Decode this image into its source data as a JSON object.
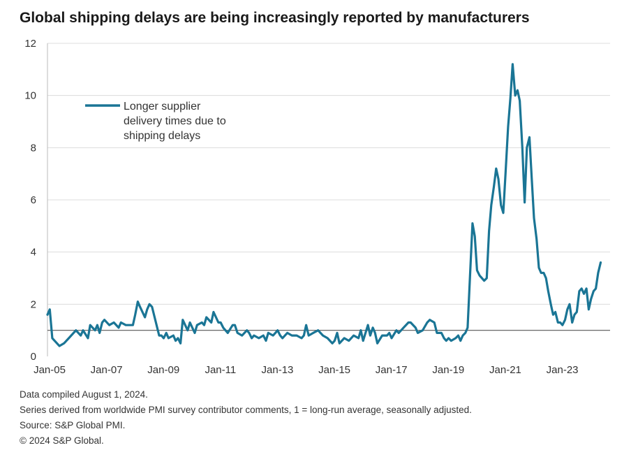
{
  "title": "Global shipping delays are being increasingly reported by manufacturers",
  "footnotes": {
    "compiled": "Data compiled August 1, 2024.",
    "series_note": "Series derived from worldwide PMI survey contributor comments, 1 = long-run average, seasonally adjusted.",
    "source": "Source: S&P Global PMI.",
    "copyright": "© 2024 S&P Global."
  },
  "colors": {
    "series": "#1a7595",
    "grid": "#dcdcdc",
    "reference": "#555555",
    "text": "#333333"
  },
  "chart_data": {
    "type": "line",
    "title": "Global shipping delays are being increasingly reported by manufacturers",
    "xlabel": "",
    "ylabel": "",
    "ylim": [
      0,
      12
    ],
    "yticks": [
      0,
      2,
      4,
      6,
      8,
      10,
      12
    ],
    "xlim": [
      2005.0,
      2024.75
    ],
    "xticks": [
      {
        "x": 2005.0,
        "label": "Jan-05"
      },
      {
        "x": 2007.0,
        "label": "Jan-07"
      },
      {
        "x": 2009.0,
        "label": "Jan-09"
      },
      {
        "x": 2011.0,
        "label": "Jan-11"
      },
      {
        "x": 2013.0,
        "label": "Jan-13"
      },
      {
        "x": 2015.0,
        "label": "Jan-15"
      },
      {
        "x": 2017.0,
        "label": "Jan-17"
      },
      {
        "x": 2019.0,
        "label": "Jan-19"
      },
      {
        "x": 2021.0,
        "label": "Jan-21"
      },
      {
        "x": 2023.0,
        "label": "Jan-23"
      }
    ],
    "reference_line": 1,
    "grid": true,
    "legend": "top-left",
    "series": [
      {
        "name": "Longer supplier delivery times due to shipping delays",
        "points": [
          [
            2005.0,
            1.6
          ],
          [
            2005.08,
            1.8
          ],
          [
            2005.17,
            0.7
          ],
          [
            2005.25,
            0.6
          ],
          [
            2005.42,
            0.4
          ],
          [
            2005.58,
            0.5
          ],
          [
            2005.75,
            0.7
          ],
          [
            2006.0,
            1.0
          ],
          [
            2006.17,
            0.8
          ],
          [
            2006.25,
            1.0
          ],
          [
            2006.42,
            0.7
          ],
          [
            2006.5,
            1.2
          ],
          [
            2006.67,
            1.0
          ],
          [
            2006.75,
            1.2
          ],
          [
            2006.83,
            0.9
          ],
          [
            2006.92,
            1.3
          ],
          [
            2007.0,
            1.4
          ],
          [
            2007.17,
            1.2
          ],
          [
            2007.33,
            1.3
          ],
          [
            2007.5,
            1.1
          ],
          [
            2007.58,
            1.3
          ],
          [
            2007.75,
            1.2
          ],
          [
            2008.0,
            1.2
          ],
          [
            2008.08,
            1.6
          ],
          [
            2008.17,
            2.1
          ],
          [
            2008.25,
            1.9
          ],
          [
            2008.42,
            1.5
          ],
          [
            2008.5,
            1.8
          ],
          [
            2008.58,
            2.0
          ],
          [
            2008.67,
            1.9
          ],
          [
            2008.83,
            1.2
          ],
          [
            2008.92,
            0.8
          ],
          [
            2009.0,
            0.8
          ],
          [
            2009.08,
            0.7
          ],
          [
            2009.17,
            0.9
          ],
          [
            2009.25,
            0.7
          ],
          [
            2009.42,
            0.8
          ],
          [
            2009.5,
            0.6
          ],
          [
            2009.58,
            0.7
          ],
          [
            2009.67,
            0.5
          ],
          [
            2009.75,
            1.4
          ],
          [
            2009.92,
            1.0
          ],
          [
            2010.0,
            1.3
          ],
          [
            2010.17,
            0.9
          ],
          [
            2010.25,
            1.2
          ],
          [
            2010.42,
            1.3
          ],
          [
            2010.5,
            1.2
          ],
          [
            2010.58,
            1.5
          ],
          [
            2010.75,
            1.3
          ],
          [
            2010.83,
            1.7
          ],
          [
            2011.0,
            1.3
          ],
          [
            2011.08,
            1.3
          ],
          [
            2011.17,
            1.1
          ],
          [
            2011.33,
            0.9
          ],
          [
            2011.5,
            1.2
          ],
          [
            2011.58,
            1.2
          ],
          [
            2011.67,
            0.9
          ],
          [
            2011.83,
            0.8
          ],
          [
            2012.0,
            1.0
          ],
          [
            2012.08,
            0.9
          ],
          [
            2012.17,
            0.7
          ],
          [
            2012.25,
            0.8
          ],
          [
            2012.42,
            0.7
          ],
          [
            2012.58,
            0.8
          ],
          [
            2012.67,
            0.6
          ],
          [
            2012.75,
            0.9
          ],
          [
            2012.92,
            0.8
          ],
          [
            2013.0,
            0.9
          ],
          [
            2013.08,
            1.0
          ],
          [
            2013.17,
            0.8
          ],
          [
            2013.25,
            0.7
          ],
          [
            2013.42,
            0.9
          ],
          [
            2013.58,
            0.8
          ],
          [
            2013.75,
            0.8
          ],
          [
            2013.92,
            0.7
          ],
          [
            2014.0,
            0.8
          ],
          [
            2014.08,
            1.2
          ],
          [
            2014.17,
            0.8
          ],
          [
            2014.33,
            0.9
          ],
          [
            2014.5,
            1.0
          ],
          [
            2014.67,
            0.8
          ],
          [
            2014.83,
            0.7
          ],
          [
            2015.0,
            0.5
          ],
          [
            2015.08,
            0.6
          ],
          [
            2015.17,
            0.9
          ],
          [
            2015.25,
            0.5
          ],
          [
            2015.42,
            0.7
          ],
          [
            2015.58,
            0.6
          ],
          [
            2015.75,
            0.8
          ],
          [
            2015.92,
            0.7
          ],
          [
            2016.0,
            1.0
          ],
          [
            2016.08,
            0.6
          ],
          [
            2016.25,
            1.2
          ],
          [
            2016.33,
            0.8
          ],
          [
            2016.42,
            1.1
          ],
          [
            2016.5,
            0.9
          ],
          [
            2016.58,
            0.5
          ],
          [
            2016.75,
            0.8
          ],
          [
            2016.92,
            0.8
          ],
          [
            2017.0,
            0.9
          ],
          [
            2017.08,
            0.7
          ],
          [
            2017.25,
            1.0
          ],
          [
            2017.33,
            0.9
          ],
          [
            2017.5,
            1.1
          ],
          [
            2017.67,
            1.3
          ],
          [
            2017.75,
            1.3
          ],
          [
            2017.92,
            1.1
          ],
          [
            2018.0,
            0.9
          ],
          [
            2018.17,
            1.0
          ],
          [
            2018.33,
            1.3
          ],
          [
            2018.42,
            1.4
          ],
          [
            2018.58,
            1.3
          ],
          [
            2018.67,
            0.9
          ],
          [
            2018.83,
            0.9
          ],
          [
            2018.92,
            0.7
          ],
          [
            2019.0,
            0.6
          ],
          [
            2019.08,
            0.7
          ],
          [
            2019.17,
            0.6
          ],
          [
            2019.33,
            0.7
          ],
          [
            2019.42,
            0.8
          ],
          [
            2019.5,
            0.6
          ],
          [
            2019.58,
            0.8
          ],
          [
            2019.67,
            0.9
          ],
          [
            2019.75,
            1.1
          ],
          [
            2019.83,
            3.0
          ],
          [
            2019.92,
            5.1
          ],
          [
            2020.0,
            4.6
          ],
          [
            2020.08,
            3.3
          ],
          [
            2020.17,
            3.1
          ],
          [
            2020.25,
            3.0
          ],
          [
            2020.33,
            2.9
          ],
          [
            2020.42,
            3.0
          ],
          [
            2020.5,
            4.8
          ],
          [
            2020.58,
            5.8
          ],
          [
            2020.67,
            6.5
          ],
          [
            2020.75,
            7.2
          ],
          [
            2020.83,
            6.8
          ],
          [
            2020.92,
            5.8
          ],
          [
            2021.0,
            5.5
          ],
          [
            2021.08,
            7.0
          ],
          [
            2021.17,
            8.8
          ],
          [
            2021.25,
            9.9
          ],
          [
            2021.33,
            11.2
          ],
          [
            2021.42,
            10.0
          ],
          [
            2021.5,
            10.2
          ],
          [
            2021.58,
            9.8
          ],
          [
            2021.67,
            8.0
          ],
          [
            2021.75,
            5.9
          ],
          [
            2021.83,
            8.0
          ],
          [
            2021.92,
            8.4
          ],
          [
            2022.0,
            6.8
          ],
          [
            2022.08,
            5.3
          ],
          [
            2022.17,
            4.5
          ],
          [
            2022.25,
            3.4
          ],
          [
            2022.33,
            3.2
          ],
          [
            2022.42,
            3.2
          ],
          [
            2022.5,
            3.0
          ],
          [
            2022.58,
            2.5
          ],
          [
            2022.67,
            2.0
          ],
          [
            2022.75,
            1.6
          ],
          [
            2022.83,
            1.7
          ],
          [
            2022.92,
            1.3
          ],
          [
            2023.0,
            1.3
          ],
          [
            2023.08,
            1.2
          ],
          [
            2023.17,
            1.4
          ],
          [
            2023.25,
            1.8
          ],
          [
            2023.33,
            2.0
          ],
          [
            2023.42,
            1.3
          ],
          [
            2023.5,
            1.6
          ],
          [
            2023.58,
            1.7
          ],
          [
            2023.67,
            2.5
          ],
          [
            2023.75,
            2.6
          ],
          [
            2023.83,
            2.4
          ],
          [
            2023.92,
            2.6
          ],
          [
            2024.0,
            1.8
          ],
          [
            2024.08,
            2.2
          ],
          [
            2024.17,
            2.5
          ],
          [
            2024.25,
            2.6
          ],
          [
            2024.33,
            3.2
          ],
          [
            2024.42,
            3.6
          ]
        ]
      }
    ]
  }
}
